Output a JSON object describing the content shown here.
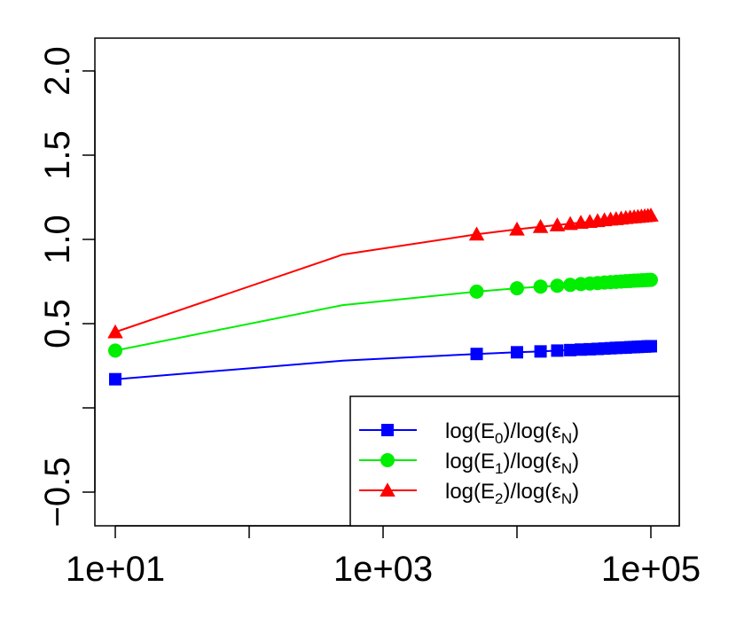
{
  "chart_data": {
    "type": "line",
    "title": "",
    "xlabel": "",
    "ylabel": "",
    "x_scale": "log",
    "xlim": [
      7.5,
      180000
    ],
    "ylim": [
      -0.7,
      2.3
    ],
    "x_ticks": [
      10,
      100,
      1000,
      10000,
      100000
    ],
    "x_tick_labels": [
      "1e+01",
      "",
      "1e+03",
      "",
      "1e+05"
    ],
    "y_ticks": [
      -0.5,
      0,
      0.5,
      1.0,
      1.5,
      2.0
    ],
    "y_tick_labels": [
      "−0.5",
      "",
      "0.5",
      "1.0",
      "1.5",
      "2.0"
    ],
    "grid": false,
    "legend_position": "bottom-right",
    "series": [
      {
        "name": "log(E0)/log(εN)",
        "name_parts": {
          "pre": "log(E",
          "sub": "0",
          "mid": ")/log(ε",
          "sub2": "N",
          "post": ")"
        },
        "color": "#0000ff",
        "marker": "square",
        "x": [
          10,
          500,
          5000,
          10000,
          15000,
          20000,
          25000,
          30000,
          35000,
          40000,
          45000,
          50000,
          55000,
          60000,
          65000,
          70000,
          75000,
          80000,
          85000,
          90000,
          95000,
          100000
        ],
        "y": [
          0.17,
          0.28,
          0.32,
          0.33,
          0.335,
          0.34,
          0.343,
          0.346,
          0.348,
          0.35,
          0.352,
          0.354,
          0.356,
          0.357,
          0.358,
          0.36,
          0.361,
          0.362,
          0.363,
          0.364,
          0.365,
          0.366
        ]
      },
      {
        "name": "log(E1)/log(εN)",
        "name_parts": {
          "pre": "log(E",
          "sub": "1",
          "mid": ")/log(ε",
          "sub2": "N",
          "post": ")"
        },
        "color": "#00ee00",
        "marker": "circle",
        "x": [
          10,
          500,
          5000,
          10000,
          15000,
          20000,
          25000,
          30000,
          35000,
          40000,
          45000,
          50000,
          55000,
          60000,
          65000,
          70000,
          75000,
          80000,
          85000,
          90000,
          95000,
          100000
        ],
        "y": [
          0.34,
          0.61,
          0.69,
          0.71,
          0.72,
          0.725,
          0.73,
          0.735,
          0.738,
          0.741,
          0.744,
          0.746,
          0.748,
          0.75,
          0.752,
          0.753,
          0.755,
          0.756,
          0.757,
          0.758,
          0.759,
          0.76
        ]
      },
      {
        "name": "log(E2)/log(εN)",
        "name_parts": {
          "pre": "log(E",
          "sub": "2",
          "mid": ")/log(ε",
          "sub2": "N",
          "post": ")"
        },
        "color": "#ff0000",
        "marker": "triangle",
        "x": [
          10,
          500,
          5000,
          10000,
          15000,
          20000,
          25000,
          30000,
          35000,
          40000,
          45000,
          50000,
          55000,
          60000,
          65000,
          70000,
          75000,
          80000,
          85000,
          90000,
          95000,
          100000
        ],
        "y": [
          0.45,
          0.91,
          1.03,
          1.06,
          1.075,
          1.085,
          1.093,
          1.1,
          1.105,
          1.11,
          1.115,
          1.119,
          1.122,
          1.125,
          1.128,
          1.131,
          1.133,
          1.135,
          1.137,
          1.139,
          1.141,
          1.143
        ]
      }
    ]
  }
}
